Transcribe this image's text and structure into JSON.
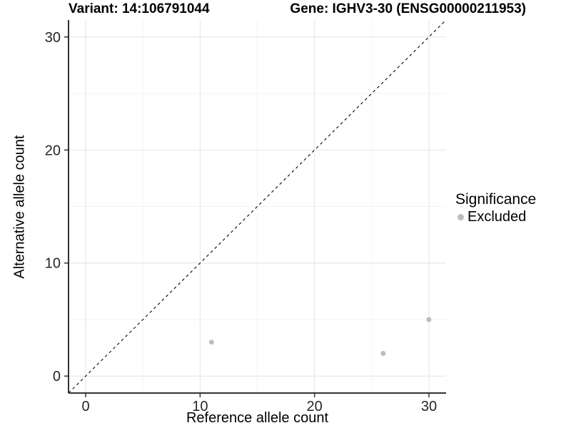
{
  "figure": {
    "title_left": "Variant: 14:106791044",
    "title_right": "Gene: IGHV3-30 (ENSG00000211953)"
  },
  "chart_data": {
    "type": "scatter",
    "title": "Variant: 14:106791044 — Gene: IGHV3-30 (ENSG00000211953)",
    "xlabel": "Reference allele count",
    "ylabel": "Alternative allele count",
    "xlim": [
      -1.5,
      31.5
    ],
    "ylim": [
      -1.5,
      31.5
    ],
    "x_major_ticks": [
      0,
      10,
      20,
      30
    ],
    "y_major_ticks": [
      0,
      10,
      20,
      30
    ],
    "x_minor_gridlines": [
      5,
      15,
      25
    ],
    "y_minor_gridlines": [
      5,
      15,
      25
    ],
    "grid": true,
    "series": [
      {
        "name": "Excluded",
        "color": "#bcbcbc",
        "points": [
          {
            "x": 11,
            "y": 3
          },
          {
            "x": 26,
            "y": 2
          },
          {
            "x": 30,
            "y": 5
          }
        ]
      }
    ],
    "reference_line": {
      "type": "identity",
      "style": "dashed",
      "color": "#1a1a1a",
      "from": [
        -1.5,
        -1.5
      ],
      "to": [
        31.5,
        31.5
      ]
    },
    "legend": {
      "title": "Significance",
      "position": "right",
      "entries": [
        {
          "label": "Excluded",
          "marker_color": "#bcbcbc"
        }
      ]
    }
  },
  "colors": {
    "major_grid": "#e4e4e4",
    "minor_grid": "#f2f2f2",
    "axis_line": "#333333",
    "tick_mark": "#333333",
    "tick_label": "#262626",
    "title_text": "#000000"
  }
}
